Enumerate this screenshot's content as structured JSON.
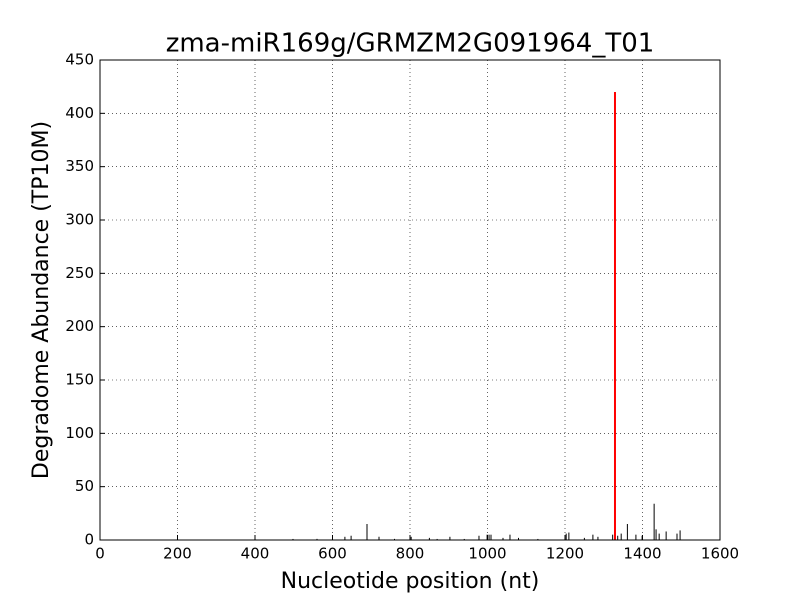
{
  "chart_data": {
    "type": "spike",
    "title": "zma-miR169g/GRMZM2G091964_T01",
    "x_label": "Nucleotide position (nt)",
    "y_label": "Degradome Abundance (TP10M)",
    "xlim": [
      0,
      1600
    ],
    "xticks": [
      0,
      200,
      400,
      600,
      800,
      1000,
      1200,
      1400,
      1600
    ],
    "ylim": [
      0,
      450
    ],
    "yticks": [
      0,
      50,
      100,
      150,
      200,
      250,
      300,
      350,
      400,
      450
    ],
    "grid": true,
    "series": [
      {
        "color": "#000000",
        "x": [
          498,
          560,
          632,
          648,
          689,
          720,
          760,
          803,
          850,
          870,
          903,
          940,
          978,
          999,
          1004,
          1009,
          1040,
          1058,
          1080,
          1130,
          1203,
          1210,
          1250,
          1272,
          1285,
          1323,
          1336,
          1345,
          1361,
          1383,
          1399,
          1430,
          1435,
          1443,
          1461,
          1489,
          1497
        ],
        "values": [
          1,
          1,
          3,
          4,
          15,
          3,
          1,
          3,
          2,
          1,
          3,
          1,
          4,
          5,
          5,
          5,
          2,
          5,
          2,
          1,
          6,
          7,
          2,
          5,
          3,
          5,
          4,
          6,
          15,
          5,
          4,
          34,
          10,
          6,
          8,
          6,
          9
        ]
      },
      {
        "color": "#ff0000",
        "x": [
          1329
        ],
        "values": [
          420
        ]
      }
    ]
  }
}
